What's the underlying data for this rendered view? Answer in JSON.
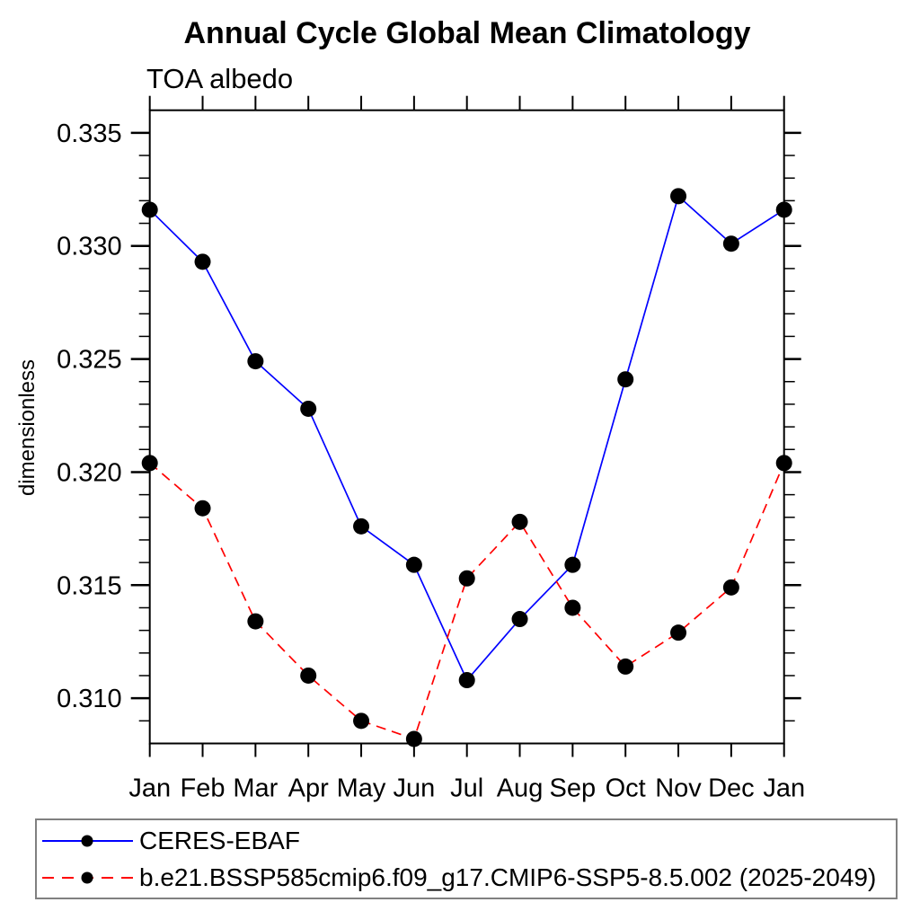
{
  "title": "Annual Cycle Global Mean Climatology",
  "subtitle": "TOA albedo",
  "chart_data": {
    "type": "line",
    "title": "Annual Cycle Global Mean Climatology",
    "subtitle": "TOA albedo",
    "ylabel": "dimensionless",
    "xlabel": "",
    "categories": [
      "Jan",
      "Feb",
      "Mar",
      "Apr",
      "May",
      "Jun",
      "Jul",
      "Aug",
      "Sep",
      "Oct",
      "Nov",
      "Dec",
      "Jan"
    ],
    "ylim": [
      0.308,
      0.336
    ],
    "yticks_major": [
      0.31,
      0.315,
      0.32,
      0.325,
      0.33,
      0.335
    ],
    "ytick_labels": [
      "0.310",
      "0.315",
      "0.320",
      "0.325",
      "0.330",
      "0.335"
    ],
    "y_minor_step": 0.001,
    "grid": false,
    "legend_position": "bottom-left",
    "axis_color": "#000000",
    "series": [
      {
        "name": "CERES-EBAF",
        "line_color": "#0000ff",
        "line_style": "solid",
        "marker": "filled-circle",
        "marker_color": "#000000",
        "values": [
          0.3316,
          0.3293,
          0.3249,
          0.3228,
          0.3176,
          0.3159,
          0.3108,
          0.3135,
          0.3159,
          0.3241,
          0.3322,
          0.3301,
          0.3316
        ]
      },
      {
        "name": "b.e21.BSSP585cmip6.f09_g17.CMIP6-SSP5-8.5.002 (2025-2049)",
        "line_color": "#ff0000",
        "line_style": "dashed",
        "marker": "filled-circle",
        "marker_color": "#000000",
        "values": [
          0.3204,
          0.3184,
          0.3134,
          0.311,
          0.309,
          0.3082,
          0.3153,
          0.3178,
          0.314,
          0.3114,
          0.3129,
          0.3149,
          0.3204
        ]
      }
    ]
  },
  "legend": {
    "border_color": "#808080"
  }
}
